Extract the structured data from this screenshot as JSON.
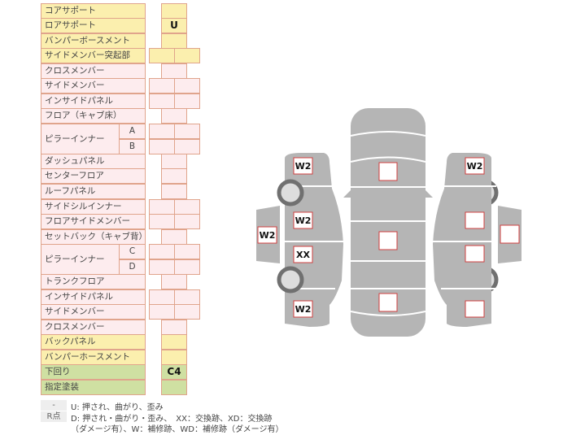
{
  "colors": {
    "yellow": "#fbefae",
    "pink": "#fdecee",
    "green": "#cfe0a2",
    "border": "#e0a48c",
    "body": "#b5b5b5",
    "mark_border": "#d04040"
  },
  "table": {
    "rows": [
      {
        "label": "コアサポート",
        "color": "y",
        "cells": 1,
        "value": ""
      },
      {
        "label": "ロアサポート",
        "color": "y",
        "cells": 1,
        "value": "U"
      },
      {
        "label": "バンパーボースメント",
        "color": "y",
        "cells": 1,
        "value": ""
      },
      {
        "label": "サイドメンバー突起部",
        "color": "y",
        "cells": 2,
        "value": ""
      },
      {
        "label": "クロスメンバー",
        "color": "p",
        "cells": 1,
        "value": ""
      },
      {
        "label": "サイドメンバー",
        "color": "p",
        "cells": 2,
        "value": ""
      },
      {
        "label": "インサイドパネル",
        "color": "p",
        "cells": 2,
        "value": ""
      },
      {
        "label": "フロア（キャブ床）",
        "color": "p",
        "cells": 1,
        "value": ""
      },
      {
        "label": "ピラーインナー",
        "color": "p",
        "cells": 2,
        "value": "",
        "sub": [
          "A",
          "B"
        ]
      },
      {
        "label": "ダッシュパネル",
        "color": "p",
        "cells": 1,
        "value": ""
      },
      {
        "label": "センターフロア",
        "color": "p",
        "cells": 1,
        "value": ""
      },
      {
        "label": "ルーフパネル",
        "color": "p",
        "cells": 1,
        "value": ""
      },
      {
        "label": "サイドシルインナー",
        "color": "p",
        "cells": 2,
        "value": ""
      },
      {
        "label": "フロアサイドメンバー",
        "color": "p",
        "cells": 2,
        "value": ""
      },
      {
        "label": "セットバック（キャブ背）",
        "color": "p",
        "cells": 1,
        "value": ""
      },
      {
        "label": "ピラーインナー",
        "color": "p",
        "cells": 2,
        "value": "",
        "sub": [
          "C",
          "D"
        ]
      },
      {
        "label": "トランクフロア",
        "color": "p",
        "cells": 1,
        "value": ""
      },
      {
        "label": "インサイドパネル",
        "color": "p",
        "cells": 2,
        "value": ""
      },
      {
        "label": "サイドメンバー",
        "color": "p",
        "cells": 2,
        "value": ""
      },
      {
        "label": "クロスメンバー",
        "color": "p",
        "cells": 1,
        "value": ""
      },
      {
        "label": "バックパネル",
        "color": "y",
        "cells": 1,
        "value": ""
      },
      {
        "label": "バンパーホースメント",
        "color": "y",
        "cells": 1,
        "value": ""
      },
      {
        "label": "下回り",
        "color": "g",
        "cells": 1,
        "value": "C4"
      },
      {
        "label": "指定塗装",
        "color": "g",
        "cells": 1,
        "value": ""
      }
    ]
  },
  "legend": {
    "key1": "-",
    "text1": "U: 押され、曲がり、歪み",
    "key2": "R点",
    "text2": "D: 押され・曲がり・歪み、　XX：交換跡、XD：交換跡",
    "text3": "（ダメージ有）、W：補修跡、WD：補修跡（ダメージ有）"
  },
  "diagram": {
    "left_side": {
      "front": "W2",
      "front_door": "W2",
      "door": "W2",
      "rear_door": "XX",
      "rear": "W2"
    },
    "top": {
      "hood": "",
      "roof": "",
      "trunk": ""
    },
    "right_side": {
      "front": "W2",
      "front_door": "",
      "door": "",
      "rear_door": "",
      "rear": ""
    }
  }
}
